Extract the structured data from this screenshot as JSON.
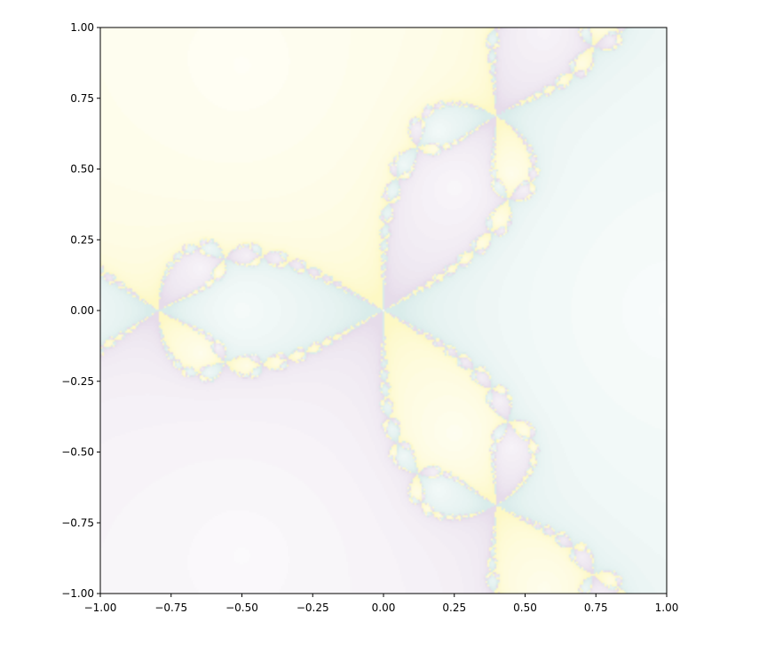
{
  "chart_data": {
    "type": "heatmap",
    "title": "",
    "xlabel": "",
    "ylabel": "",
    "xlim": [
      -1.0,
      1.0
    ],
    "ylim": [
      -1.0,
      1.0
    ],
    "x_ticks": [
      -1.0,
      -0.75,
      -0.5,
      -0.25,
      0.0,
      0.25,
      0.5,
      0.75,
      1.0
    ],
    "y_ticks": [
      -1.0,
      -0.75,
      -0.5,
      -0.25,
      0.0,
      0.25,
      0.5,
      0.75,
      1.0
    ],
    "x_tick_labels": [
      "−1.00",
      "−0.75",
      "−0.50",
      "−0.25",
      "0.00",
      "0.25",
      "0.50",
      "0.75",
      "1.00"
    ],
    "y_tick_labels": [
      "−1.00",
      "−0.75",
      "−0.50",
      "−0.25",
      "0.00",
      "0.25",
      "0.50",
      "0.75",
      "1.00"
    ],
    "grid": false,
    "legend": "none",
    "field": "Newton basins of attraction for z^3 - 1 = 0 (shaded by iteration count)",
    "roots": [
      {
        "x": 1.0,
        "y": 0.0
      },
      {
        "x": -0.5,
        "y": 0.866
      },
      {
        "x": -0.5,
        "y": -0.866
      }
    ],
    "basin_colors": [
      "#d9ecea",
      "#fdf8c4",
      "#e6dcea"
    ]
  }
}
